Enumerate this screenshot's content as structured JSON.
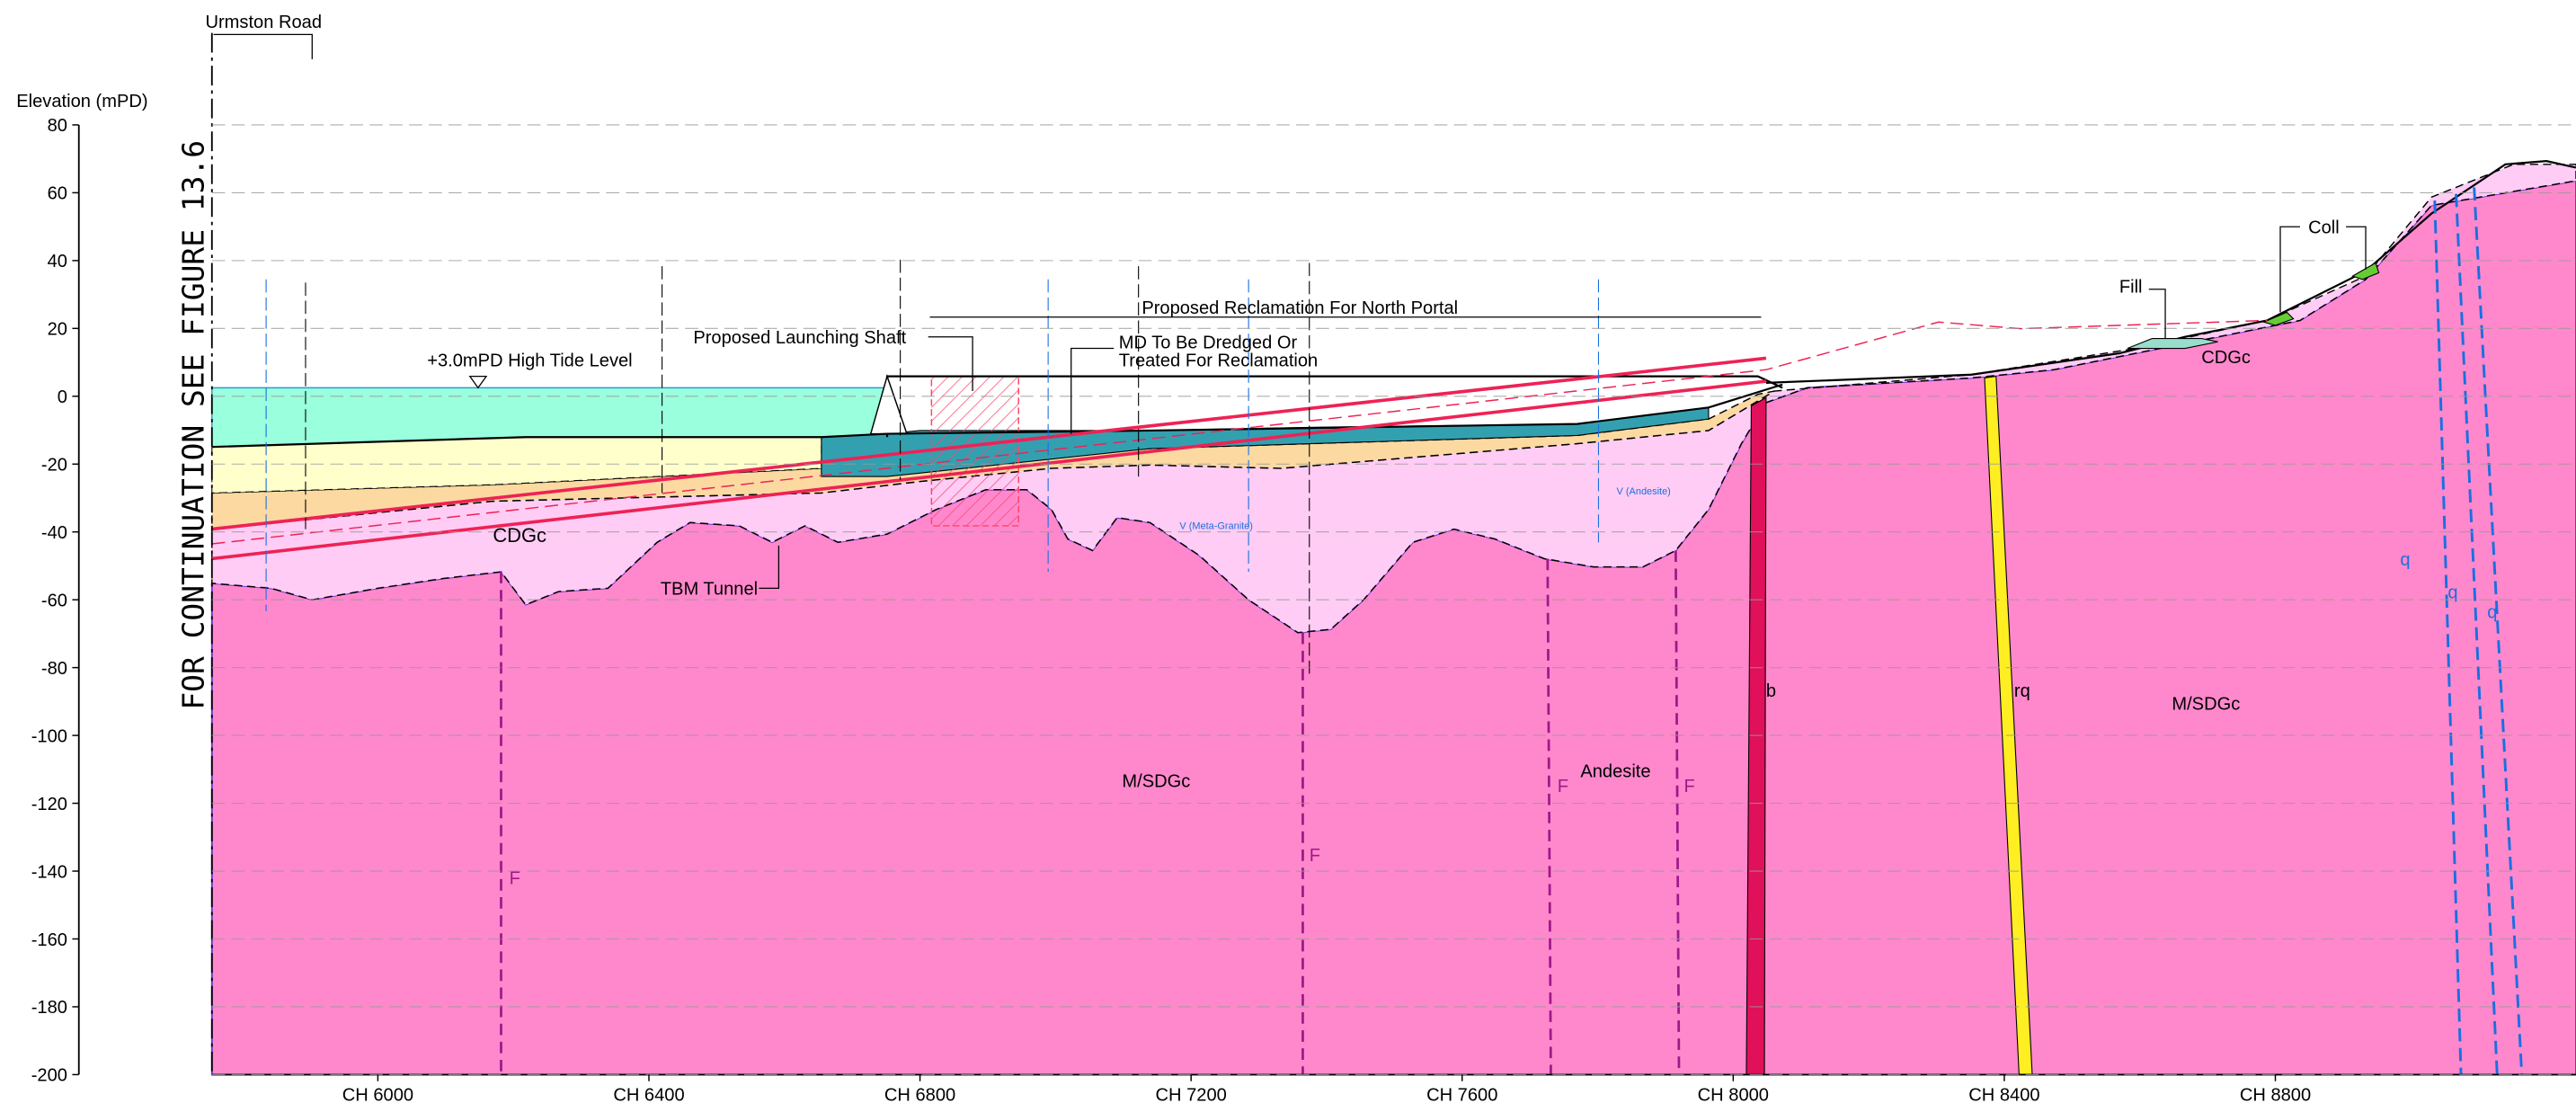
{
  "road": "Urmston Road",
  "side_note": "FOR CONTINUATION SEE FIGURE 13.6",
  "axis": {
    "title": "Elevation (mPD)",
    "yticks": [
      80,
      60,
      40,
      20,
      0,
      -20,
      -40,
      -60,
      -80,
      -100,
      -120,
      -140,
      -160,
      -180,
      -200
    ],
    "xticks": [
      "CH 6000",
      "CH 6400",
      "CH 6800",
      "CH 7200",
      "CH 7600",
      "CH 8000",
      "CH 8400",
      "CH 8800"
    ]
  },
  "annotations": {
    "high_tide": "+3.0mPD  High Tide Level",
    "launching_shaft": "Proposed Launching Shaft",
    "reclamation": "Proposed Reclamation For North Portal",
    "dredged_1": "MD To Be Dredged Or",
    "dredged_2": "Treated For Reclamation",
    "tbm": "TBM Tunnel",
    "fill": "Fill",
    "coll": "Coll"
  },
  "units": {
    "cdgc_left": "CDGc",
    "cdgc_right": "CDGc",
    "msdgc_left": "M/SDGc",
    "msdgc_right": "M/SDGc",
    "andesite": "Andesite",
    "b": "b",
    "rq": "rq",
    "f": [
      "F",
      "F",
      "F",
      "F"
    ],
    "q": [
      "q",
      "q",
      "q"
    ]
  },
  "borehole_notes": [
    "V (Meta-Granite)",
    "V (Andesite)"
  ]
}
